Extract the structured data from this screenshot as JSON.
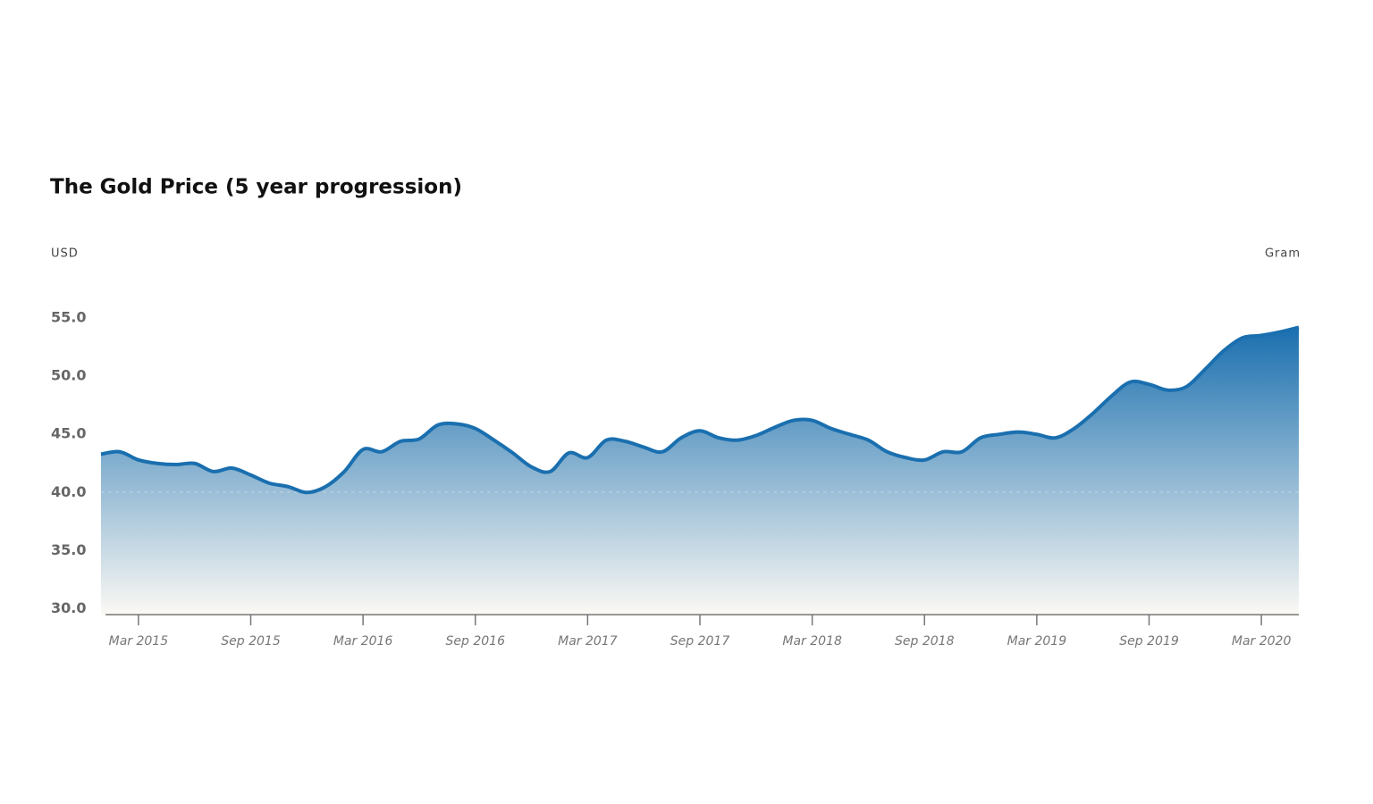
{
  "chart_data": {
    "type": "area",
    "title": "The Gold Price (5 year progression)",
    "y_label": "USD",
    "unit_label": "Gram",
    "color": "#1a6faf",
    "x": [
      "2015-01",
      "2015-02",
      "2015-03",
      "2015-04",
      "2015-05",
      "2015-06",
      "2015-07",
      "2015-08",
      "2015-09",
      "2015-10",
      "2015-11",
      "2015-12",
      "2016-01",
      "2016-02",
      "2016-03",
      "2016-04",
      "2016-05",
      "2016-06",
      "2016-07",
      "2016-08",
      "2016-09",
      "2016-10",
      "2016-11",
      "2016-12",
      "2017-01",
      "2017-02",
      "2017-03",
      "2017-04",
      "2017-05",
      "2017-06",
      "2017-07",
      "2017-08",
      "2017-09",
      "2017-10",
      "2017-11",
      "2017-12",
      "2018-01",
      "2018-02",
      "2018-03",
      "2018-04",
      "2018-05",
      "2018-06",
      "2018-07",
      "2018-08",
      "2018-09",
      "2018-10",
      "2018-11",
      "2018-12",
      "2019-01",
      "2019-02",
      "2019-03",
      "2019-04",
      "2019-05",
      "2019-06",
      "2019-07",
      "2019-08",
      "2019-09",
      "2019-10",
      "2019-11",
      "2019-12",
      "2020-01",
      "2020-02",
      "2020-03",
      "2020-04",
      "2020-05"
    ],
    "values": [
      43.3,
      43.5,
      42.8,
      42.5,
      42.4,
      42.5,
      41.8,
      42.1,
      41.5,
      40.8,
      40.5,
      40.0,
      40.5,
      41.8,
      43.7,
      43.5,
      44.4,
      44.6,
      45.8,
      45.9,
      45.5,
      44.5,
      43.4,
      42.2,
      41.8,
      43.4,
      43.0,
      44.5,
      44.4,
      43.9,
      43.5,
      44.7,
      45.3,
      44.7,
      44.5,
      44.9,
      45.6,
      46.2,
      46.2,
      45.5,
      45.0,
      44.5,
      43.5,
      43.0,
      42.8,
      43.5,
      43.5,
      44.7,
      45.0,
      45.2,
      45.0,
      44.7,
      45.5,
      46.8,
      48.3,
      49.5,
      49.3,
      48.8,
      49.1,
      50.6,
      52.2,
      53.3,
      53.5,
      53.8,
      54.2
    ],
    "xlim": [
      "2015-01",
      "2020-05"
    ],
    "xticks": [
      {
        "value": "2015-03",
        "label": "Mar 2015"
      },
      {
        "value": "2015-09",
        "label": "Sep 2015"
      },
      {
        "value": "2016-03",
        "label": "Mar 2016"
      },
      {
        "value": "2016-09",
        "label": "Sep 2016"
      },
      {
        "value": "2017-03",
        "label": "Mar 2017"
      },
      {
        "value": "2017-09",
        "label": "Sep 2017"
      },
      {
        "value": "2018-03",
        "label": "Mar 2018"
      },
      {
        "value": "2018-09",
        "label": "Sep 2018"
      },
      {
        "value": "2019-03",
        "label": "Mar 2019"
      },
      {
        "value": "2019-09",
        "label": "Sep 2019"
      },
      {
        "value": "2020-03",
        "label": "Mar 2020"
      }
    ],
    "ylim": [
      29.5,
      55
    ],
    "yticks": [
      {
        "value": 30,
        "label": "30.0"
      },
      {
        "value": 35,
        "label": "35.0"
      },
      {
        "value": 40,
        "label": "40.0"
      },
      {
        "value": 45,
        "label": "45.0"
      },
      {
        "value": 50,
        "label": "50.0"
      },
      {
        "value": 55,
        "label": "55.0"
      }
    ]
  }
}
